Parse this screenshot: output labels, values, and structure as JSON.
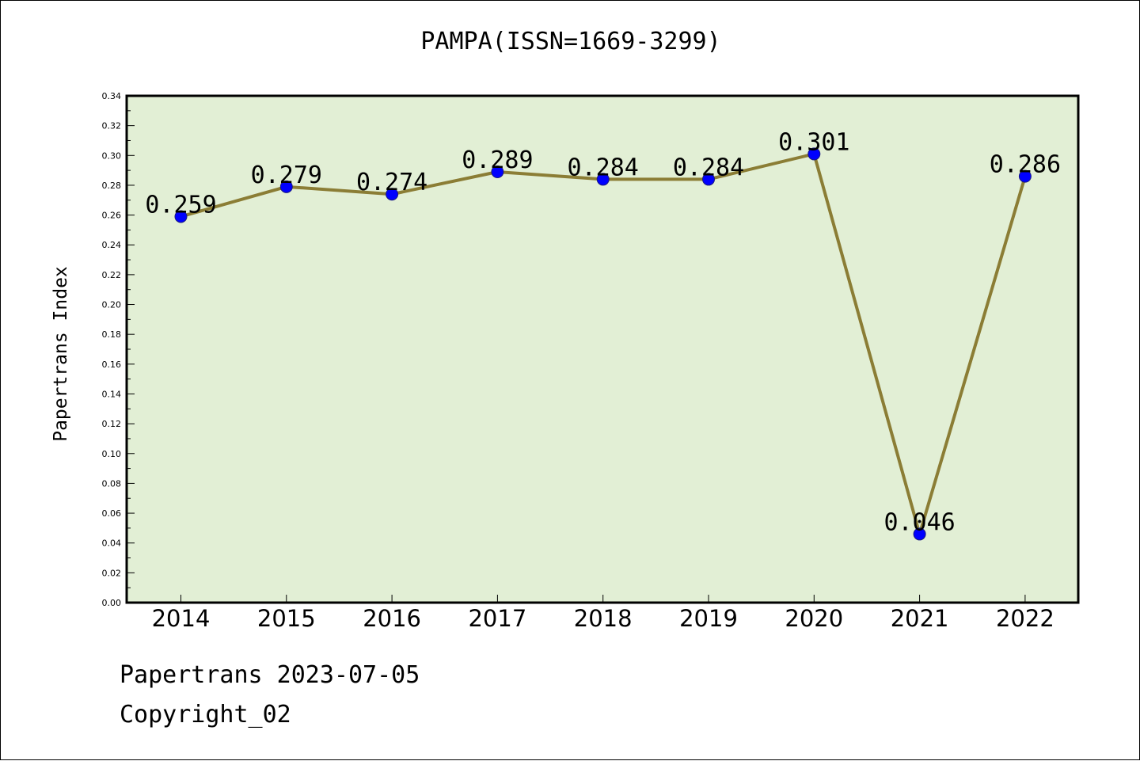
{
  "chart_data": {
    "type": "line",
    "title": "PAMPA(ISSN=1669-3299)",
    "ylabel": "Papertrans Index",
    "xlabel": "",
    "categories": [
      "2014",
      "2015",
      "2016",
      "2017",
      "2018",
      "2019",
      "2020",
      "2021",
      "2022"
    ],
    "values": [
      0.259,
      0.279,
      0.274,
      0.289,
      0.284,
      0.284,
      0.301,
      0.046,
      0.286
    ],
    "data_labels": [
      "0.259",
      "0.279",
      "0.274",
      "0.289",
      "0.284",
      "0.284",
      "0.301",
      "0.046",
      "0.286"
    ],
    "ylim": [
      0,
      0.34
    ],
    "yticks": [
      "0.00",
      "0.02",
      "0.04",
      "0.06",
      "0.08",
      "0.10",
      "0.12",
      "0.14",
      "0.16",
      "0.18",
      "0.20",
      "0.22",
      "0.24",
      "0.26",
      "0.28",
      "0.30",
      "0.32",
      "0.34"
    ],
    "grid": false,
    "colors": {
      "plot_background": "#e2efd5",
      "line": "#8b7d35",
      "marker": "#0000ff"
    }
  },
  "footer": {
    "line1": "Papertrans 2023-07-05",
    "line2": "Copyright_02"
  }
}
